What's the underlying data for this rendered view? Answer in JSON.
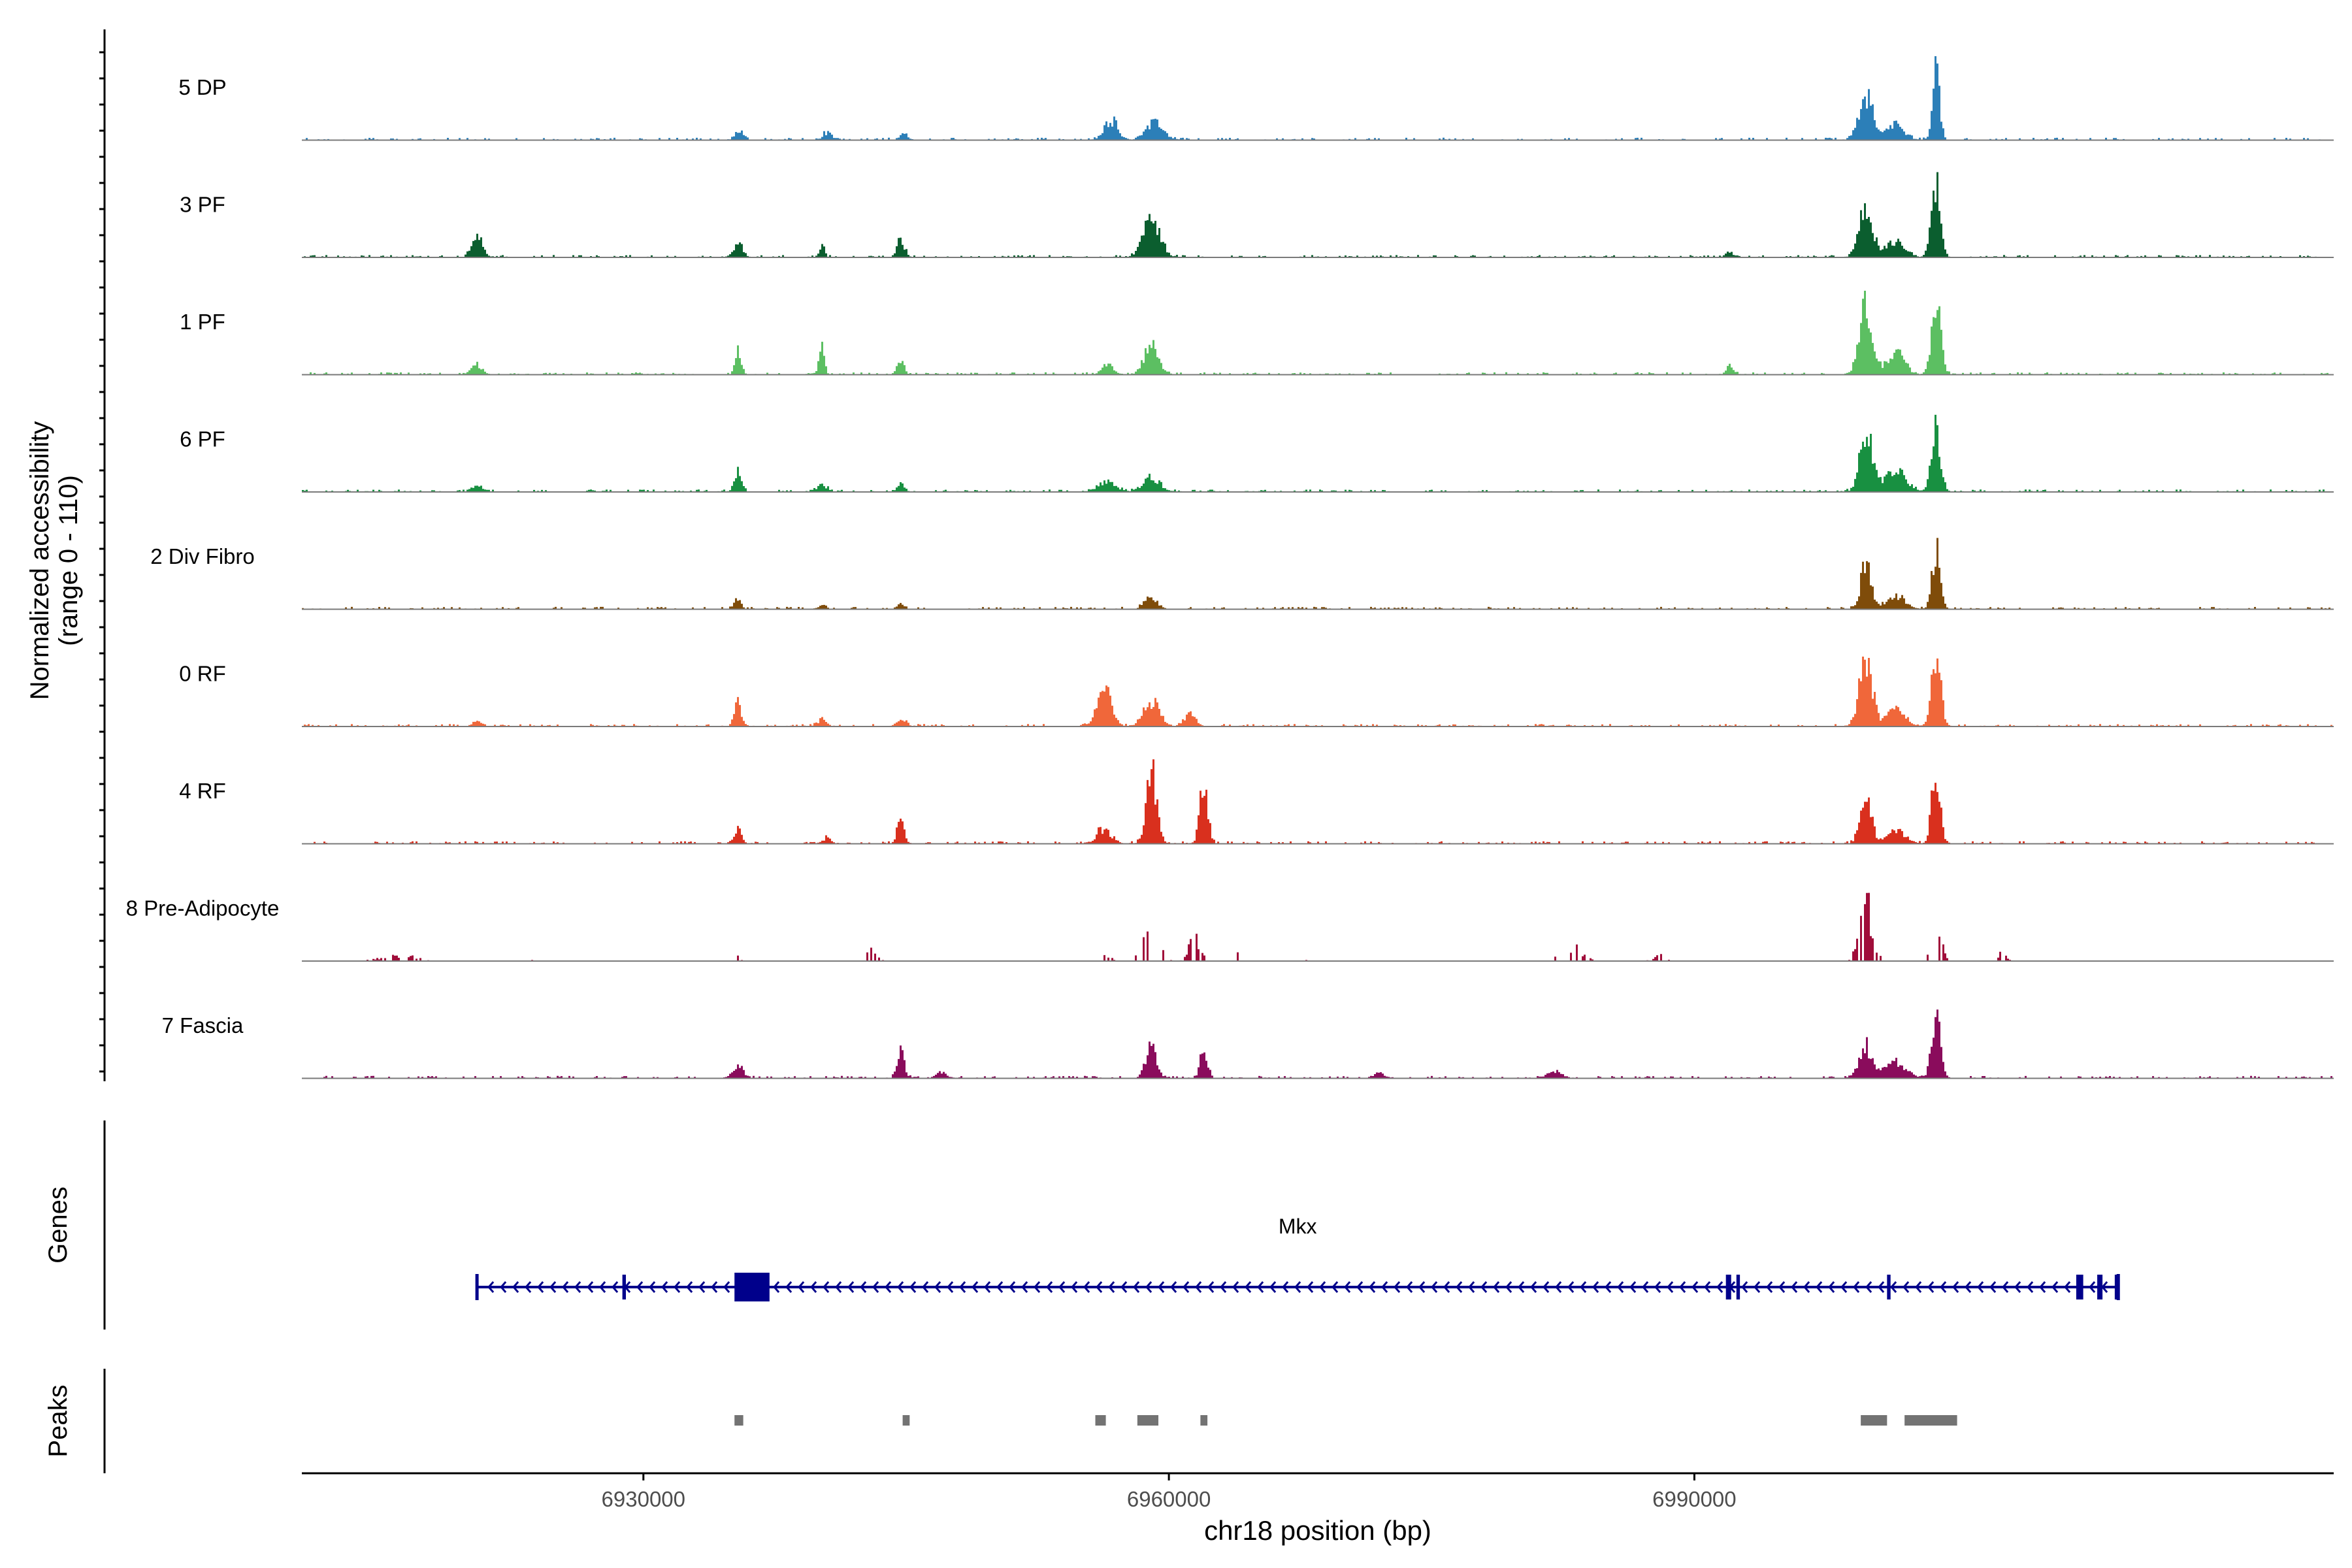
{
  "chart_data": {
    "type": "area",
    "title": "",
    "ylabel_line1": "Normalized accessibility",
    "ylabel_line2": "(range 0 - 110)",
    "xlabel": "chr18 position (bp)",
    "y_range": [
      0,
      110
    ],
    "x_range": [
      6910500,
      7026500
    ],
    "x_ticks": [
      6930000,
      6960000,
      6990000
    ],
    "x_tick_labels": [
      "6930000",
      "6960000",
      "6990000"
    ],
    "tracks": [
      {
        "name": "5 DP",
        "color": "#2c7fb8",
        "scale": 0.92,
        "peaks": [
          [
            6935500,
            0.12,
            220
          ],
          [
            6940500,
            0.09,
            250
          ],
          [
            6944900,
            0.07,
            220
          ],
          [
            6956700,
            0.25,
            380
          ],
          [
            6959200,
            0.2,
            500
          ],
          [
            6999800,
            0.55,
            380
          ],
          [
            7003800,
            0.95,
            200
          ],
          [
            7001500,
            0.18,
            500
          ]
        ]
      },
      {
        "name": "3 PF",
        "color": "#0b5e2f",
        "scale": 0.9,
        "peaks": [
          [
            6920500,
            0.25,
            300
          ],
          [
            6935400,
            0.18,
            260
          ],
          [
            6940200,
            0.17,
            140
          ],
          [
            6944700,
            0.22,
            220
          ],
          [
            6959000,
            0.55,
            450
          ],
          [
            6992000,
            0.07,
            200
          ],
          [
            6999800,
            0.6,
            380
          ],
          [
            7003800,
            0.85,
            260
          ],
          [
            7001500,
            0.22,
            500
          ]
        ]
      },
      {
        "name": "1 PF",
        "color": "#5cbf62",
        "scale": 0.92,
        "peaks": [
          [
            6920500,
            0.12,
            300
          ],
          [
            6935400,
            0.33,
            170
          ],
          [
            6940200,
            0.35,
            140
          ],
          [
            6944700,
            0.18,
            200
          ],
          [
            6956500,
            0.12,
            300
          ],
          [
            6959000,
            0.35,
            400
          ],
          [
            6992000,
            0.11,
            200
          ],
          [
            6999800,
            0.8,
            380
          ],
          [
            7003800,
            0.85,
            260
          ],
          [
            7001500,
            0.25,
            500
          ]
        ]
      },
      {
        "name": "6 PF",
        "color": "#189041",
        "scale": 0.92,
        "peaks": [
          [
            6920500,
            0.08,
            300
          ],
          [
            6935400,
            0.25,
            200
          ],
          [
            6940200,
            0.07,
            300
          ],
          [
            6944700,
            0.1,
            200
          ],
          [
            6956500,
            0.12,
            500
          ],
          [
            6959000,
            0.18,
            450
          ],
          [
            6999800,
            0.8,
            350
          ],
          [
            7003800,
            0.75,
            260
          ],
          [
            7001500,
            0.25,
            600
          ]
        ]
      },
      {
        "name": "2 Div Fibro",
        "color": "#7f4c0a",
        "scale": 0.9,
        "peaks": [
          [
            6935400,
            0.12,
            200
          ],
          [
            6940200,
            0.05,
            200
          ],
          [
            6944700,
            0.06,
            200
          ],
          [
            6959000,
            0.15,
            350
          ],
          [
            6999800,
            0.55,
            300
          ],
          [
            7003800,
            0.72,
            230
          ],
          [
            7001500,
            0.18,
            500
          ]
        ]
      },
      {
        "name": "0 RF",
        "color": "#f0673a",
        "scale": 0.95,
        "peaks": [
          [
            6920500,
            0.06,
            250
          ],
          [
            6935400,
            0.28,
            200
          ],
          [
            6940200,
            0.08,
            250
          ],
          [
            6944700,
            0.09,
            250
          ],
          [
            6956300,
            0.45,
            400
          ],
          [
            6959000,
            0.3,
            450
          ],
          [
            6961200,
            0.15,
            300
          ],
          [
            6999800,
            0.78,
            360
          ],
          [
            7003800,
            0.85,
            260
          ],
          [
            7001500,
            0.22,
            500
          ]
        ]
      },
      {
        "name": "4 RF",
        "color": "#d9301e",
        "scale": 0.95,
        "peaks": [
          [
            6935400,
            0.16,
            200
          ],
          [
            6940500,
            0.06,
            250
          ],
          [
            6944700,
            0.42,
            180
          ],
          [
            6956300,
            0.18,
            400
          ],
          [
            6959000,
            0.85,
            300
          ],
          [
            6962000,
            0.78,
            220
          ],
          [
            6999800,
            0.62,
            300
          ],
          [
            7003800,
            0.86,
            240
          ],
          [
            7001500,
            0.18,
            500
          ]
        ]
      },
      {
        "name": "8 Pre-Adipocyte",
        "color": "#a00d3a",
        "scale": 0.95,
        "spiky": true,
        "peaks": [
          [
            6916000,
            0.08,
            900
          ],
          [
            6924000,
            0.05,
            200
          ],
          [
            6935400,
            0.06,
            120
          ],
          [
            6943000,
            0.15,
            300
          ],
          [
            6956300,
            0.12,
            300
          ],
          [
            6959000,
            0.8,
            400
          ],
          [
            6961500,
            0.35,
            300
          ],
          [
            6964000,
            0.1,
            120
          ],
          [
            6968000,
            0.04,
            100
          ],
          [
            6983000,
            0.17,
            600
          ],
          [
            6988000,
            0.1,
            300
          ],
          [
            6999800,
            0.8,
            350
          ],
          [
            7003800,
            0.55,
            260
          ],
          [
            7007500,
            0.1,
            250
          ]
        ]
      },
      {
        "name": "7 Fascia",
        "color": "#8a0c5c",
        "scale": 0.92,
        "peaks": [
          [
            6935400,
            0.15,
            300
          ],
          [
            6944700,
            0.32,
            200
          ],
          [
            6947000,
            0.07,
            300
          ],
          [
            6959000,
            0.38,
            300
          ],
          [
            6962000,
            0.35,
            200
          ],
          [
            6972000,
            0.06,
            300
          ],
          [
            6982000,
            0.08,
            400
          ],
          [
            6999800,
            0.38,
            400
          ],
          [
            7003800,
            0.7,
            260
          ],
          [
            7001500,
            0.18,
            600
          ]
        ]
      }
    ],
    "genes_label": "Genes",
    "gene_name": "Mkx",
    "gene_start": 6920500,
    "gene_end": 7014200,
    "gene_color": "#00008b",
    "gene_exons": [
      [
        6935200,
        6937200
      ],
      [
        6928800,
        6929000
      ],
      [
        6991800,
        6992100
      ],
      [
        6992400,
        6992600
      ],
      [
        7001000,
        7001200
      ],
      [
        7011800,
        7012200
      ],
      [
        7013000,
        7013300
      ],
      [
        7014000,
        7014200
      ]
    ],
    "peaks_label": "Peaks",
    "peak_color": "#737373",
    "peak_regions": [
      [
        6935200,
        6935700
      ],
      [
        6944800,
        6945200
      ],
      [
        6955800,
        6956400
      ],
      [
        6958200,
        6959400
      ],
      [
        6961800,
        6962200
      ],
      [
        6999500,
        7001000
      ],
      [
        7002000,
        7005000
      ]
    ]
  }
}
